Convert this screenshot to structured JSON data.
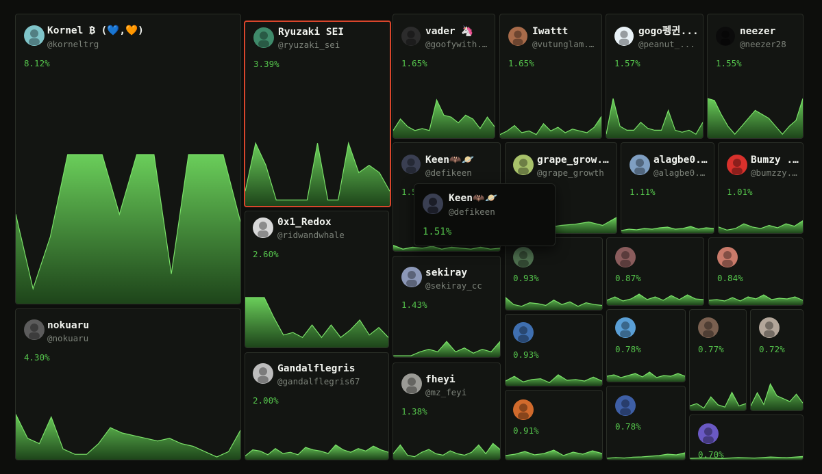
{
  "colors": {
    "background": "#0d0e0c",
    "tile": "#131512",
    "border": "#2a2e27",
    "accent_green": "#55c44c",
    "selected_border": "#d9462c"
  },
  "tiles": [
    {
      "name": "Kornel ₿ (💙,🧡)",
      "handle": "@korneltrg",
      "share": "8.12%",
      "avatar_icon": "user-avatar-icon",
      "series": [
        60,
        10,
        45,
        100,
        100,
        100,
        60,
        100,
        100,
        20,
        100,
        100,
        100,
        55
      ]
    },
    {
      "name": "Ryuzaki SEI",
      "handle": "@ryuzaki_sei",
      "share": "3.39%",
      "selected": true,
      "avatar_icon": "user-avatar-icon",
      "series": [
        20,
        85,
        55,
        8,
        8,
        8,
        8,
        85,
        8,
        8,
        85,
        45,
        55,
        45,
        20
      ]
    },
    {
      "name": "0x1_Redox",
      "handle": "@ridwandwhale",
      "share": "2.60%",
      "avatar_icon": "user-avatar-icon",
      "series": [
        100,
        100,
        100,
        60,
        25,
        30,
        20,
        45,
        20,
        45,
        20,
        35,
        55,
        25,
        40,
        20
      ]
    },
    {
      "name": "Gandalflegris",
      "handle": "@gandalflegris67",
      "share": "2.00%",
      "avatar_icon": "user-avatar-icon",
      "series": [
        15,
        40,
        35,
        20,
        45,
        25,
        30,
        20,
        50,
        40,
        35,
        25,
        60,
        40,
        30,
        45,
        35,
        55,
        40,
        30
      ]
    },
    {
      "name": "nokuaru",
      "handle": "@nokuaru",
      "share": "4.30%",
      "avatar_icon": "user-avatar-icon",
      "series": [
        85,
        40,
        30,
        80,
        20,
        10,
        10,
        30,
        60,
        50,
        45,
        40,
        35,
        40,
        30,
        25,
        15,
        5,
        15,
        55
      ]
    },
    {
      "name": "vader 🦄",
      "handle": "@goofywith...",
      "share": "1.65%",
      "avatar_icon": "user-avatar-icon",
      "series": [
        20,
        50,
        30,
        20,
        25,
        20,
        100,
        60,
        55,
        40,
        60,
        50,
        25,
        55,
        30
      ]
    },
    {
      "name": "Keen🦇🪐",
      "handle": "@defikeen",
      "share": "1.51%",
      "avatar_icon": "user-avatar-icon",
      "series": [
        30,
        10,
        20,
        15,
        25,
        10,
        20,
        15,
        10,
        20,
        10,
        15
      ]
    },
    {
      "name": "sekiray",
      "handle": "@sekiray_cc",
      "share": "1.43%",
      "avatar_icon": "user-avatar-icon",
      "series": [
        5,
        5,
        5,
        20,
        30,
        20,
        60,
        20,
        35,
        15,
        30,
        20,
        60
      ]
    },
    {
      "name": "fheyi",
      "handle": "@mz_feyi",
      "share": "1.38%",
      "avatar_icon": "user-avatar-icon",
      "series": [
        20,
        50,
        15,
        10,
        25,
        35,
        20,
        15,
        30,
        20,
        15,
        25,
        50,
        20,
        55,
        35
      ]
    },
    {
      "name": "Iwattt",
      "handle": "@vutunglam...",
      "share": "1.65%",
      "avatar_icon": "user-avatar-icon",
      "series": [
        10,
        20,
        35,
        15,
        20,
        10,
        40,
        20,
        30,
        15,
        25,
        20,
        15,
        30,
        60
      ]
    },
    {
      "name": "gogo펭귄...",
      "handle": "@peanut_...",
      "share": "1.57%",
      "avatar_icon": "user-avatar-icon",
      "series": [
        10,
        100,
        30,
        20,
        20,
        40,
        25,
        20,
        20,
        70,
        20,
        15,
        20,
        10,
        40
      ]
    },
    {
      "name": "neezer",
      "handle": "@neezer28",
      "share": "1.55%",
      "avatar_icon": "user-avatar-icon",
      "series": [
        100,
        95,
        60,
        30,
        10,
        30,
        50,
        70,
        60,
        50,
        30,
        10,
        30,
        45,
        100
      ]
    },
    {
      "name": "grape_grow...",
      "handle": "@grape_growth",
      "share": "",
      "avatar_icon": "user-avatar-icon",
      "series": [
        10,
        20,
        15,
        25,
        35,
        40,
        50,
        35,
        70
      ]
    },
    {
      "name": "alagbe0...",
      "handle": "@alagbe0...",
      "share": "1.11%",
      "avatar_icon": "user-avatar-icon",
      "series": [
        20,
        30,
        25,
        35,
        30,
        40,
        45,
        30,
        35,
        50,
        30,
        40,
        35
      ]
    },
    {
      "name": "Bumzy ...",
      "handle": "@bumzzy...",
      "share": "1.01%",
      "avatar_icon": "user-avatar-icon",
      "series": [
        40,
        20,
        30,
        60,
        40,
        30,
        50,
        35,
        60,
        45,
        80
      ]
    },
    {
      "name": "",
      "handle": "",
      "share": "0.93%",
      "avatar_icon": "user-avatar-icon",
      "series": [
        70,
        30,
        20,
        40,
        35,
        25,
        55,
        30,
        45,
        20,
        40,
        30,
        25
      ]
    },
    {
      "name": "",
      "handle": "",
      "share": "0.87%",
      "avatar_icon": "user-avatar-icon",
      "series": [
        35,
        60,
        30,
        45,
        80,
        40,
        60,
        35,
        70,
        40,
        75,
        45,
        40
      ]
    },
    {
      "name": "",
      "handle": "",
      "share": "0.84%",
      "avatar_icon": "user-avatar-icon",
      "series": [
        35,
        40,
        30,
        55,
        30,
        60,
        45,
        75,
        40,
        50,
        45,
        60,
        35
      ]
    },
    {
      "name": "",
      "handle": "",
      "share": "0.93%",
      "avatar_icon": "user-avatar-icon",
      "series": [
        30,
        60,
        25,
        40,
        45,
        20,
        70,
        35,
        40,
        30,
        55,
        30
      ]
    },
    {
      "name": "",
      "handle": "",
      "share": "0.78%",
      "avatar_icon": "user-avatar-icon",
      "series": [
        40,
        50,
        30,
        45,
        60,
        35,
        70,
        30,
        45,
        40,
        60,
        40
      ]
    },
    {
      "name": "",
      "handle": "",
      "share": "0.77%",
      "avatar_icon": "user-avatar-icon",
      "series": [
        20,
        30,
        10,
        60,
        25,
        15,
        80,
        20,
        30
      ]
    },
    {
      "name": "",
      "handle": "",
      "share": "0.72%",
      "avatar_icon": "user-avatar-icon",
      "series": [
        15,
        60,
        20,
        90,
        50,
        40,
        30,
        55,
        25
      ]
    },
    {
      "name": "",
      "handle": "",
      "share": "0.91%",
      "avatar_icon": "user-avatar-icon",
      "series": [
        30,
        40,
        60,
        35,
        45,
        70,
        30,
        55,
        40,
        65,
        45
      ]
    },
    {
      "name": "",
      "handle": "",
      "share": "0.78%",
      "avatar_icon": "user-avatar-icon",
      "series": [
        10,
        15,
        12,
        18,
        20,
        25,
        30,
        40,
        35,
        50
      ]
    },
    {
      "name": "",
      "handle": "",
      "share": "0.70%",
      "avatar_icon": "user-avatar-icon",
      "series": [
        15,
        20,
        12,
        25,
        18,
        30,
        22,
        35
      ]
    }
  ],
  "tooltip": {
    "name": "Keen🦇🪐",
    "handle": "@defikeen",
    "share": "1.51%"
  }
}
